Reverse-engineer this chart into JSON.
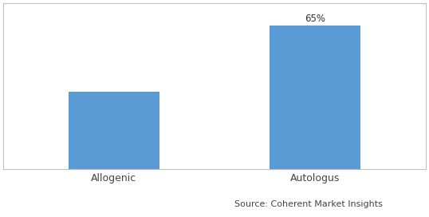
{
  "categories": [
    "Allogenic",
    "Autologus"
  ],
  "values": [
    35,
    65
  ],
  "bar_color": "#5B9BD5",
  "bar_label": [
    null,
    "65%"
  ],
  "ylim": [
    0,
    75
  ],
  "source_text": "Source: Coherent Market Insights",
  "background_color": "#ffffff",
  "label_fontsize": 8.5,
  "tick_fontsize": 9,
  "source_fontsize": 8,
  "bar_width": 0.45,
  "border_color": "#c0c0c0",
  "border_linewidth": 0.8
}
